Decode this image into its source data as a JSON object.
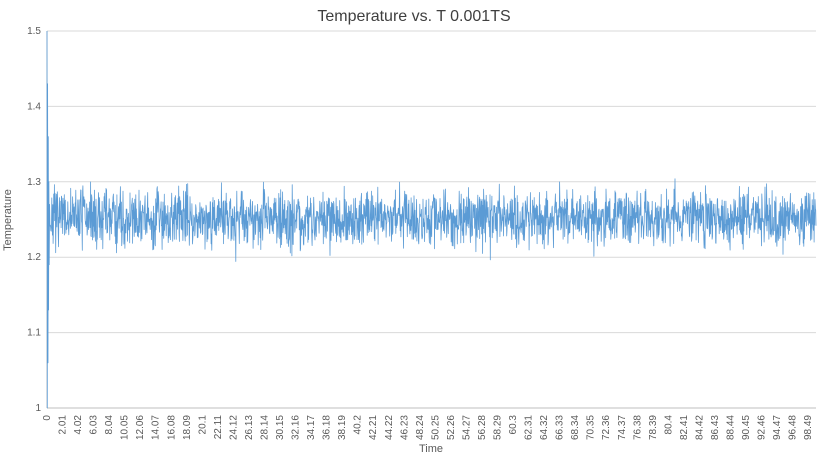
{
  "chart_data": {
    "type": "line",
    "title": "Temperature vs. T 0.001TS",
    "xlabel": "Time",
    "ylabel": "Temperature",
    "xlim": [
      0,
      99.5
    ],
    "ylim": [
      1,
      1.5
    ],
    "y_ticks": [
      "1",
      "1.1",
      "1.2",
      "1.3",
      "1.4",
      "1.5"
    ],
    "x_ticks": [
      "0",
      "2.01",
      "4.02",
      "6.03",
      "8.04",
      "10.05",
      "12.06",
      "14.07",
      "16.08",
      "18.09",
      "20.1",
      "22.11",
      "24.12",
      "26.13",
      "28.14",
      "30.15",
      "32.16",
      "34.17",
      "36.18",
      "38.19",
      "40.2",
      "42.21",
      "44.22",
      "46.23",
      "48.24",
      "50.25",
      "52.26",
      "54.27",
      "56.28",
      "58.29",
      "60.3",
      "62.31",
      "64.32",
      "66.33",
      "68.34",
      "70.35",
      "72.36",
      "74.37",
      "76.38",
      "78.39",
      "80.4",
      "82.41",
      "84.42",
      "86.43",
      "88.44",
      "90.45",
      "92.46",
      "94.47",
      "96.48",
      "98.49"
    ],
    "grid": true,
    "legend": false,
    "line_color": "#5b9bd5",
    "grid_color": "#d9d9d9",
    "axis_color": "#bfbfbf",
    "text_color": "#595959",
    "title_color": "#3f3f3f",
    "series": [
      {
        "name": "Temperature",
        "description": "Dense noisy temperature signal fluctuating around a mean of ~1.25 (noise band roughly 1.19 to 1.32) across the full time range 0 to ~99.5, with an initial transient spike at t=0 spanning from 1.0 up to 1.5 before settling into the steady noise band.",
        "mean": 1.252,
        "noise_amp": 0.065,
        "min": 1.185,
        "max": 1.325,
        "initial_points": [
          1.5,
          1.0,
          1.43,
          1.06,
          1.36,
          1.13,
          1.3,
          1.19,
          1.27
        ],
        "n_points": 2400,
        "x_start": 0,
        "x_end": 99.5,
        "seed": 7
      }
    ]
  }
}
